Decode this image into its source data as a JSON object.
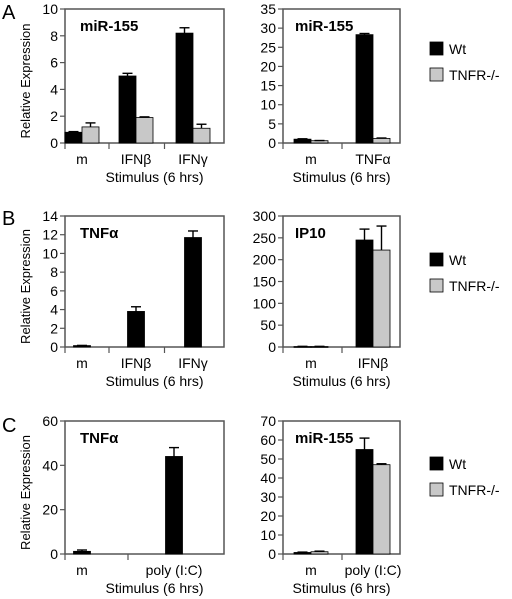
{
  "panel_labels": [
    "A",
    "B",
    "C"
  ],
  "legend": {
    "entries": [
      "Wt",
      "TNFR-/-"
    ],
    "colors": [
      "#000000",
      "#c8c8c8"
    ]
  },
  "chart_data": [
    {
      "type": "bar",
      "panel": "A",
      "title": "miR-155",
      "ylabel": "Relative Expression",
      "xlabel": "Stimulus (6 hrs)",
      "ylim": [
        0,
        10
      ],
      "yticks": [
        0,
        2,
        4,
        6,
        8,
        10
      ],
      "categories": [
        "m",
        "IFNβ",
        "IFNγ"
      ],
      "series": [
        {
          "name": "Wt",
          "color": "#000000",
          "values": [
            0.8,
            5.0,
            8.2
          ],
          "errors": [
            0.05,
            0.2,
            0.4
          ]
        },
        {
          "name": "TNFR-/-",
          "color": "#c8c8c8",
          "values": [
            1.2,
            1.9,
            1.1
          ],
          "errors": [
            0.3,
            0.05,
            0.3
          ]
        }
      ]
    },
    {
      "type": "bar",
      "panel": "A",
      "title": "miR-155",
      "ylabel": "",
      "xlabel": "Stimulus (6 hrs)",
      "ylim": [
        0,
        35
      ],
      "yticks": [
        0,
        5,
        10,
        15,
        20,
        25,
        30,
        35
      ],
      "categories": [
        "m",
        "TNFα"
      ],
      "series": [
        {
          "name": "Wt",
          "color": "#000000",
          "values": [
            1.0,
            28.3
          ],
          "errors": [
            0.1,
            0.3
          ]
        },
        {
          "name": "TNFR-/-",
          "color": "#c8c8c8",
          "values": [
            0.6,
            1.2
          ],
          "errors": [
            0.05,
            0.1
          ]
        }
      ],
      "legend": "right"
    },
    {
      "type": "bar",
      "panel": "B",
      "title": "TNFα",
      "ylabel": "Relative Expression",
      "xlabel": "Stimulus (6 hrs)",
      "ylim": [
        0,
        14
      ],
      "yticks": [
        0,
        2,
        4,
        6,
        8,
        10,
        12,
        14
      ],
      "categories": [
        "m",
        "IFNβ",
        "IFNγ"
      ],
      "series": [
        {
          "name": "Wt",
          "color": "#000000",
          "values": [
            0.15,
            3.8,
            11.7
          ],
          "errors": [
            0.02,
            0.5,
            0.7
          ]
        }
      ]
    },
    {
      "type": "bar",
      "panel": "B",
      "title": "IP10",
      "ylabel": "",
      "xlabel": "Stimulus (6 hrs)",
      "ylim": [
        0,
        300
      ],
      "yticks": [
        0,
        50,
        100,
        150,
        200,
        250,
        300
      ],
      "categories": [
        "m",
        "IFNβ"
      ],
      "series": [
        {
          "name": "Wt",
          "color": "#000000",
          "values": [
            1,
            245
          ],
          "errors": [
            0.5,
            25
          ]
        },
        {
          "name": "TNFR-/-",
          "color": "#c8c8c8",
          "values": [
            1,
            222
          ],
          "errors": [
            0.5,
            55
          ]
        }
      ],
      "legend": "right"
    },
    {
      "type": "bar",
      "panel": "C",
      "title": "TNFα",
      "ylabel": "Relative Expression",
      "xlabel": "Stimulus (6 hrs)",
      "ylim": [
        0,
        60
      ],
      "yticks": [
        0,
        20,
        40,
        60
      ],
      "categories": [
        "m",
        "poly (I:C)"
      ],
      "series": [
        {
          "name": "Wt",
          "color": "#000000",
          "values": [
            1.2,
            44
          ],
          "errors": [
            0.6,
            4
          ]
        }
      ]
    },
    {
      "type": "bar",
      "panel": "C",
      "title": "miR-155",
      "ylabel": "",
      "xlabel": "Stimulus (6 hrs)",
      "ylim": [
        0,
        70
      ],
      "yticks": [
        0,
        10,
        20,
        30,
        40,
        50,
        60,
        70
      ],
      "categories": [
        "m",
        "poly (I:C)"
      ],
      "series": [
        {
          "name": "Wt",
          "color": "#000000",
          "values": [
            0.8,
            55
          ],
          "errors": [
            0.2,
            6
          ]
        },
        {
          "name": "TNFR-/-",
          "color": "#c8c8c8",
          "values": [
            1.2,
            47
          ],
          "errors": [
            0.3,
            0.5
          ]
        }
      ],
      "legend": "right"
    }
  ]
}
